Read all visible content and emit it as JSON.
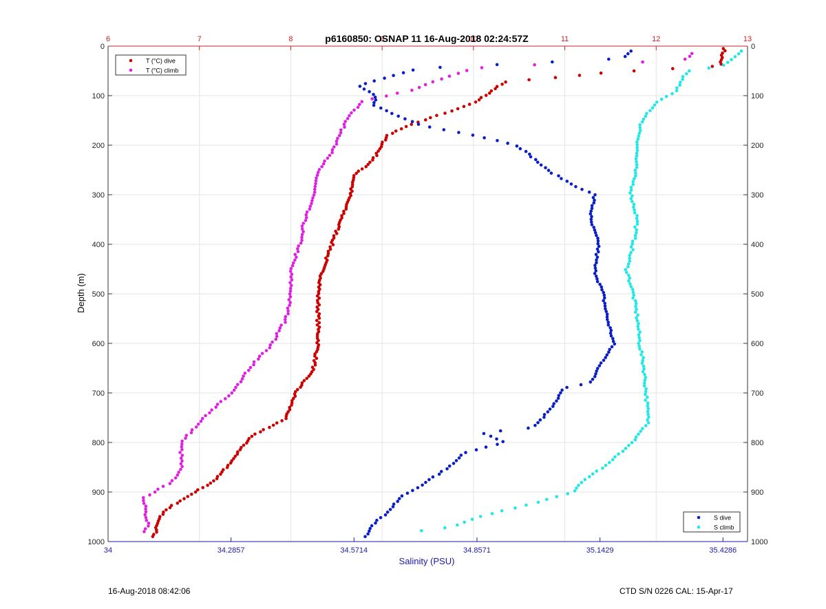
{
  "footer": {
    "left": "16-Aug-2018 08:42:06",
    "right": "CTD S/N 0226  CAL: 15-Apr-17"
  },
  "colors": {
    "t_axis": "#cc2222",
    "s_axis": "#1a1aa8",
    "t_dive": "#cc0000",
    "t_climb": "#e020e0",
    "s_dive": "#0a1ec8",
    "s_climb": "#20e8e8",
    "grid": "#e3e3e3"
  },
  "chart_data": {
    "type": "scatter",
    "title": "p6160850: OSNAP 11 16-Aug-2018 02:24:57Z",
    "ylabel": "Depth (m)",
    "xlabel": "Salinity (PSU)",
    "ylim": [
      0,
      1000
    ],
    "y_reversed": true,
    "y_ticks": [
      "0",
      "100",
      "200",
      "300",
      "400",
      "500",
      "600",
      "700",
      "800",
      "900",
      "1000"
    ],
    "top_axis": {
      "quantity": "T (°C)",
      "range": [
        6,
        13
      ],
      "ticks": [
        "6",
        "7",
        "8",
        "9",
        "10",
        "11",
        "12",
        "13"
      ]
    },
    "bottom_axis": {
      "quantity": "Salinity (PSU)",
      "range": [
        34,
        35.4857
      ],
      "ticks": [
        "34",
        "34.2857",
        "34.5714",
        "34.8571",
        "35.1429",
        "35.4286"
      ],
      "tick_values": [
        34,
        34.2857,
        34.5714,
        34.8571,
        35.1429,
        35.4286
      ]
    },
    "grid": true,
    "legends": [
      {
        "placement": "top-left",
        "entries": [
          "T (°C) dive",
          "T (°C) climb"
        ]
      },
      {
        "placement": "bottom-right",
        "entries": [
          "S dive",
          "S climb"
        ]
      }
    ],
    "series": [
      {
        "name": "T (°C) dive",
        "axis": "top",
        "profile": [
          [
            5,
            12.75
          ],
          [
            20,
            12.72
          ],
          [
            40,
            12.7
          ],
          [
            50,
            11.75
          ],
          [
            55,
            11.35
          ],
          [
            62,
            11.0
          ],
          [
            72,
            10.35
          ],
          [
            90,
            10.2
          ],
          [
            110,
            10.05
          ],
          [
            125,
            9.85
          ],
          [
            140,
            9.6
          ],
          [
            160,
            9.3
          ],
          [
            180,
            9.05
          ],
          [
            200,
            9.0
          ],
          [
            230,
            8.9
          ],
          [
            260,
            8.7
          ],
          [
            300,
            8.65
          ],
          [
            350,
            8.55
          ],
          [
            400,
            8.45
          ],
          [
            450,
            8.35
          ],
          [
            500,
            8.3
          ],
          [
            550,
            8.3
          ],
          [
            600,
            8.3
          ],
          [
            650,
            8.25
          ],
          [
            700,
            8.05
          ],
          [
            750,
            7.95
          ],
          [
            790,
            7.55
          ],
          [
            850,
            7.3
          ],
          [
            880,
            7.15
          ],
          [
            910,
            6.85
          ],
          [
            940,
            6.6
          ],
          [
            965,
            6.55
          ],
          [
            990,
            6.5
          ]
        ],
        "samples": 220
      },
      {
        "name": "T (°C) climb",
        "axis": "top",
        "profile": [
          [
            15,
            12.4
          ],
          [
            30,
            12.3
          ],
          [
            40,
            10.2
          ],
          [
            50,
            9.9
          ],
          [
            70,
            9.6
          ],
          [
            90,
            9.3
          ],
          [
            110,
            8.8
          ],
          [
            150,
            8.6
          ],
          [
            200,
            8.5
          ],
          [
            250,
            8.3
          ],
          [
            300,
            8.25
          ],
          [
            350,
            8.15
          ],
          [
            400,
            8.1
          ],
          [
            450,
            8.0
          ],
          [
            500,
            8.0
          ],
          [
            550,
            7.95
          ],
          [
            600,
            7.8
          ],
          [
            650,
            7.55
          ],
          [
            700,
            7.35
          ],
          [
            750,
            7.05
          ],
          [
            800,
            6.8
          ],
          [
            850,
            6.8
          ],
          [
            880,
            6.7
          ],
          [
            910,
            6.4
          ],
          [
            940,
            6.4
          ],
          [
            965,
            6.45
          ],
          [
            980,
            6.4
          ]
        ],
        "samples": 170
      },
      {
        "name": "S dive",
        "axis": "bottom",
        "profile": [
          [
            10,
            35.215
          ],
          [
            25,
            35.2
          ],
          [
            45,
            34.72
          ],
          [
            60,
            34.66
          ],
          [
            80,
            34.58
          ],
          [
            100,
            34.62
          ],
          [
            120,
            34.62
          ],
          [
            140,
            34.67
          ],
          [
            160,
            34.73
          ],
          [
            180,
            34.85
          ],
          [
            200,
            34.95
          ],
          [
            220,
            34.98
          ],
          [
            250,
            35.02
          ],
          [
            280,
            35.08
          ],
          [
            300,
            35.13
          ],
          [
            350,
            35.12
          ],
          [
            400,
            35.14
          ],
          [
            450,
            35.13
          ],
          [
            500,
            35.15
          ],
          [
            550,
            35.16
          ],
          [
            600,
            35.175
          ],
          [
            650,
            35.14
          ],
          [
            680,
            35.12
          ],
          [
            690,
            35.06
          ],
          [
            720,
            35.04
          ],
          [
            750,
            35.01
          ],
          [
            770,
            34.99
          ],
          [
            780,
            34.87
          ],
          [
            800,
            34.92
          ],
          [
            820,
            34.83
          ],
          [
            850,
            34.79
          ],
          [
            880,
            34.74
          ],
          [
            910,
            34.68
          ],
          [
            940,
            34.65
          ],
          [
            970,
            34.61
          ],
          [
            990,
            34.6
          ]
        ],
        "samples": 180
      },
      {
        "name": "S climb",
        "axis": "bottom",
        "profile": [
          [
            10,
            35.47
          ],
          [
            40,
            35.43
          ],
          [
            50,
            35.35
          ],
          [
            70,
            35.33
          ],
          [
            90,
            35.32
          ],
          [
            110,
            35.28
          ],
          [
            150,
            35.24
          ],
          [
            200,
            35.23
          ],
          [
            250,
            35.225
          ],
          [
            300,
            35.215
          ],
          [
            350,
            35.23
          ],
          [
            400,
            35.22
          ],
          [
            450,
            35.205
          ],
          [
            500,
            35.22
          ],
          [
            550,
            35.23
          ],
          [
            600,
            35.235
          ],
          [
            650,
            35.245
          ],
          [
            700,
            35.25
          ],
          [
            760,
            35.255
          ],
          [
            800,
            35.22
          ],
          [
            850,
            35.15
          ],
          [
            880,
            35.1
          ],
          [
            900,
            35.08
          ],
          [
            920,
            35.0
          ],
          [
            950,
            34.86
          ],
          [
            970,
            34.8
          ],
          [
            978,
            34.73
          ]
        ],
        "samples": 170
      }
    ]
  }
}
